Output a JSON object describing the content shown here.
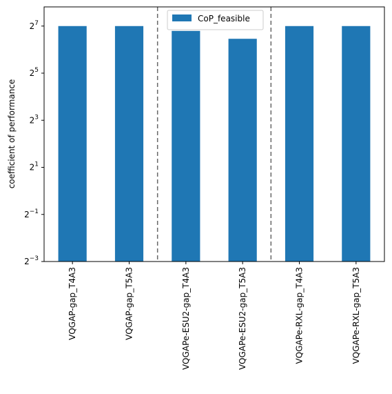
{
  "chart_data": {
    "type": "bar",
    "title": "",
    "xlabel": "",
    "ylabel": "coefficient of performance",
    "y_scale": "log2",
    "ylim": [
      0.125,
      225
    ],
    "y_ticks": [
      {
        "value": 0.125,
        "base": "2",
        "exp": "−3"
      },
      {
        "value": 0.5,
        "base": "2",
        "exp": "−1"
      },
      {
        "value": 2,
        "base": "2",
        "exp": "1"
      },
      {
        "value": 8,
        "base": "2",
        "exp": "3"
      },
      {
        "value": 32,
        "base": "2",
        "exp": "5"
      },
      {
        "value": 128,
        "base": "2",
        "exp": "7"
      }
    ],
    "categories": [
      "VQGAP-gap_T4A3",
      "VQGAP-gap_T5A3",
      "VQGAPe-ESU2-gap_T4A3",
      "VQGAPe-ESU2-gap_T5A3",
      "VQGAPe-RXL-gap_T4A3",
      "VQGAPe-RXL-gap_T5A3"
    ],
    "series": [
      {
        "name": "CoP_feasible",
        "color": "#1f77b4",
        "values": [
          128,
          128,
          111,
          88,
          128,
          128
        ]
      }
    ],
    "group_separators_after": [
      1,
      3
    ],
    "legend": {
      "placement": "top-center",
      "entries": [
        "CoP_feasible"
      ]
    },
    "grid": false
  }
}
